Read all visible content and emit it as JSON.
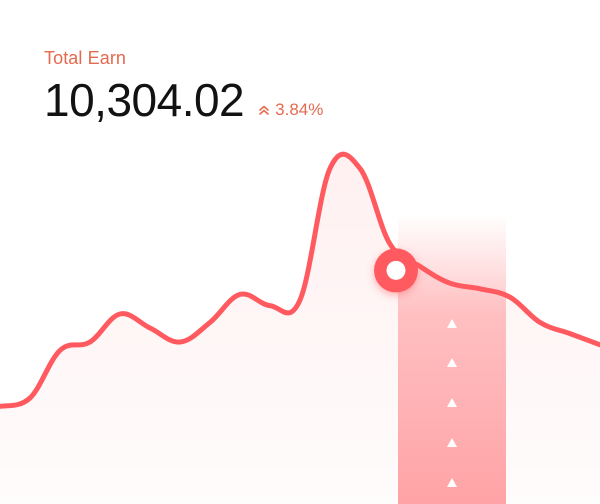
{
  "widget": {
    "label": "Total Earn",
    "value": "10,304.02",
    "change": "3.84%",
    "change_icon": "double-chevron-up-icon",
    "accent_color": "#ff5a5f",
    "text_color": "#e46a4f"
  },
  "chart_data": {
    "type": "area",
    "title": "",
    "xlabel": "",
    "ylabel": "",
    "x": [
      0,
      1,
      2,
      3,
      4,
      5,
      6,
      7,
      8,
      9,
      10,
      11,
      12,
      13,
      14,
      15,
      16,
      17,
      18,
      19,
      20
    ],
    "values": [
      12,
      15,
      32,
      35,
      45,
      40,
      35,
      42,
      52,
      48,
      50,
      97,
      97,
      70,
      62,
      56,
      54,
      51,
      42,
      38,
      34
    ],
    "highlight_index": 14,
    "grid": false,
    "legend": "none"
  }
}
